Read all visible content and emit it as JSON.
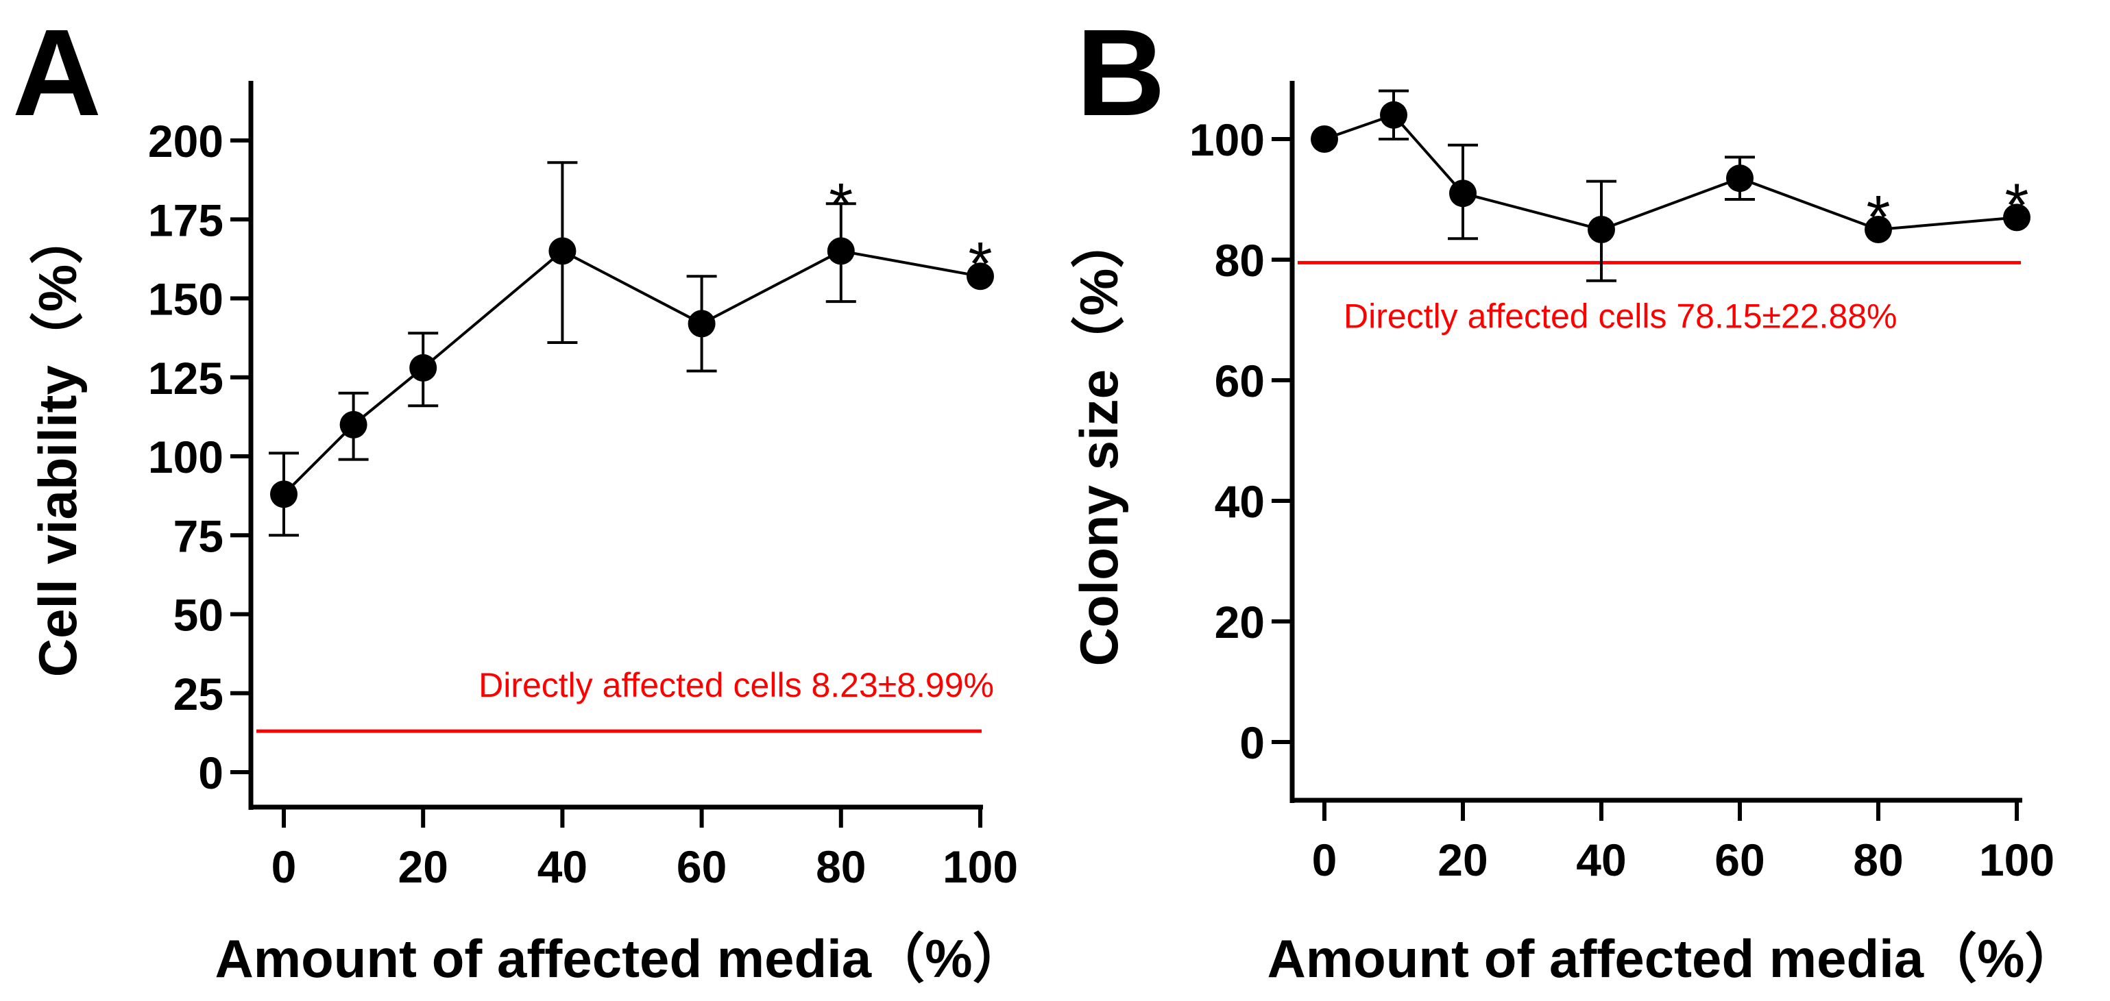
{
  "chart_data": [
    {
      "type": "line",
      "panel_label": "A",
      "xlabel": "Amount of affected media（%）",
      "ylabel": "Cell viability（%）",
      "x": [
        0,
        10,
        20,
        40,
        60,
        80,
        100
      ],
      "x_ticks": [
        0,
        20,
        40,
        60,
        80,
        100
      ],
      "y_ticks": [
        0,
        25,
        50,
        75,
        100,
        125,
        150,
        175,
        200
      ],
      "xlim": [
        -5,
        100
      ],
      "ylim": [
        -10,
        220
      ],
      "series": [
        {
          "name": "Cell viability",
          "values": [
            88,
            110,
            128,
            165,
            142,
            165,
            157
          ],
          "error_low": [
            75,
            99,
            116,
            136,
            127,
            149,
            157
          ],
          "error_high": [
            101,
            120,
            139,
            193,
            157,
            180,
            157
          ]
        }
      ],
      "significance": [
        80,
        100
      ],
      "significance_mark": "*",
      "reference_line": {
        "value": 13,
        "label": "Directly affected cells 8.23±8.99%",
        "color": "#ff0000"
      },
      "grid": false
    },
    {
      "type": "line",
      "panel_label": "B",
      "xlabel": "Amount of affected media（%）",
      "ylabel": "Colony size（%）",
      "x": [
        0,
        10,
        20,
        40,
        60,
        80,
        100
      ],
      "x_ticks": [
        0,
        20,
        40,
        60,
        80,
        100
      ],
      "y_ticks": [
        0,
        20,
        40,
        60,
        80,
        100
      ],
      "xlim": [
        -5,
        100
      ],
      "ylim": [
        -10,
        110
      ],
      "series": [
        {
          "name": "Colony size",
          "values": [
            100,
            104,
            91,
            85,
            93.5,
            85,
            87
          ],
          "error_low": [
            100,
            100,
            83.5,
            76.5,
            90,
            85,
            87
          ],
          "error_high": [
            100,
            108,
            99,
            93,
            97,
            85,
            87
          ]
        }
      ],
      "significance": [
        80,
        100
      ],
      "significance_mark": "*",
      "reference_line": {
        "value": 79.5,
        "label": "Directly affected cells 78.15±22.88%",
        "color": "#ff0000"
      },
      "grid": false
    }
  ]
}
